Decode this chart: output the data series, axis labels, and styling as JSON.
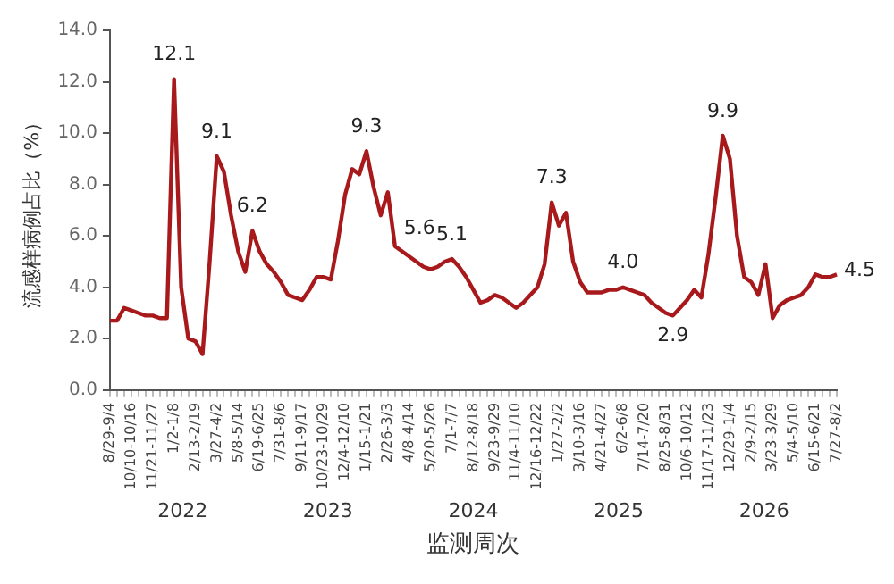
{
  "chart_data": {
    "type": "line",
    "xlabel": "监测周次",
    "ylabel": "流感样病例占比（%）",
    "categories": [
      "8/29-9/4",
      null,
      null,
      "10/10-10/16",
      null,
      null,
      "11/21-11/27",
      null,
      null,
      "1/2-1/8",
      null,
      null,
      "2/13-2/19",
      null,
      null,
      "3/27-4/2",
      null,
      null,
      "5/8-5/14",
      null,
      null,
      "6/19-6/25",
      null,
      null,
      "7/31-8/6",
      null,
      null,
      "9/11-9/17",
      null,
      null,
      "10/23-10/29",
      null,
      null,
      "12/4-12/10",
      null,
      null,
      "1/15-1/21",
      null,
      null,
      "2/26-3/3",
      null,
      null,
      "4/8-4/14",
      null,
      null,
      "5/20-5/26",
      null,
      null,
      "7/1-7/7",
      null,
      null,
      "8/12-8/18",
      null,
      null,
      "9/23-9/29",
      null,
      null,
      "11/4-11/10",
      null,
      null,
      "12/16-12/22",
      null,
      null,
      "1/27-2/2",
      null,
      null,
      "3/10-3/16",
      null,
      null,
      "4/21-4/27",
      null,
      null,
      "6/2-6/8",
      null,
      null,
      "7/14-7/20",
      null,
      null,
      "8/25-8/31",
      null,
      null,
      "10/6-10/12",
      null,
      null,
      "11/17-11/23",
      null,
      null,
      "12/29-1/4",
      null,
      null,
      "2/9-2/15",
      null,
      null,
      "3/23-3/29",
      null,
      null,
      "5/4-5/10",
      null,
      null,
      "6/15-6/21",
      null,
      null,
      "7/27-8/2"
    ],
    "series": [
      {
        "color": "#a8191c",
        "values": [
          2.7,
          2.7,
          3.2,
          3.1,
          3.0,
          2.9,
          2.9,
          2.8,
          2.8,
          12.1,
          4.0,
          2.0,
          1.9,
          1.4,
          5.0,
          9.1,
          8.5,
          6.8,
          5.4,
          4.6,
          6.2,
          5.4,
          4.9,
          4.6,
          4.2,
          3.7,
          3.6,
          3.5,
          3.9,
          4.4,
          4.4,
          4.3,
          5.8,
          7.6,
          8.6,
          8.4,
          9.3,
          7.9,
          6.8,
          7.7,
          5.6,
          5.4,
          5.2,
          5.0,
          4.8,
          4.7,
          4.8,
          5.0,
          5.1,
          4.8,
          4.4,
          3.9,
          3.4,
          3.5,
          3.7,
          3.6,
          3.4,
          3.2,
          3.4,
          3.7,
          4.0,
          4.9,
          7.3,
          6.4,
          6.9,
          5.0,
          4.2,
          3.8,
          3.8,
          3.8,
          3.9,
          3.9,
          4.0,
          3.9,
          3.8,
          3.7,
          3.4,
          3.2,
          3.0,
          2.9,
          3.2,
          3.5,
          3.9,
          3.6,
          5.3,
          7.5,
          9.9,
          9.0,
          6.0,
          4.4,
          4.2,
          3.7,
          4.9,
          2.8,
          3.3,
          3.5,
          3.6,
          3.7,
          4.0,
          4.5,
          4.4,
          4.4,
          4.5
        ],
        "value_labels": [
          null,
          null,
          null,
          null,
          null,
          null,
          null,
          null,
          null,
          "12.1",
          null,
          null,
          null,
          null,
          null,
          "9.1",
          null,
          null,
          null,
          null,
          "6.2",
          null,
          null,
          null,
          null,
          null,
          null,
          null,
          null,
          null,
          null,
          null,
          null,
          null,
          null,
          null,
          "9.3",
          null,
          null,
          null,
          "5.6",
          null,
          null,
          null,
          null,
          null,
          null,
          null,
          "5.1",
          null,
          null,
          null,
          null,
          null,
          null,
          null,
          null,
          null,
          null,
          null,
          null,
          null,
          "7.3",
          null,
          null,
          null,
          null,
          null,
          null,
          null,
          null,
          null,
          "4.0",
          null,
          null,
          null,
          null,
          null,
          null,
          "2.9",
          null,
          null,
          null,
          null,
          null,
          null,
          "9.9",
          null,
          null,
          null,
          null,
          null,
          null,
          null,
          null,
          null,
          null,
          null,
          null,
          null,
          null,
          null,
          "4.5"
        ]
      }
    ],
    "ylim": [
      0,
      14
    ],
    "yticks": [
      {
        "value": 0,
        "label": "0.0"
      },
      {
        "value": 2,
        "label": "2.0"
      },
      {
        "value": 4,
        "label": "4.0"
      },
      {
        "value": 6,
        "label": "6.0"
      },
      {
        "value": 8,
        "label": "8.0"
      },
      {
        "value": 10,
        "label": "10.0"
      },
      {
        "value": 12,
        "label": "12.0"
      },
      {
        "value": 14,
        "label": "14.0"
      }
    ],
    "annotations": [
      "2022",
      "2023",
      "2024",
      "2025",
      "2026"
    ],
    "marker": "none",
    "line_style": "solid",
    "grid": false,
    "legend": false
  }
}
